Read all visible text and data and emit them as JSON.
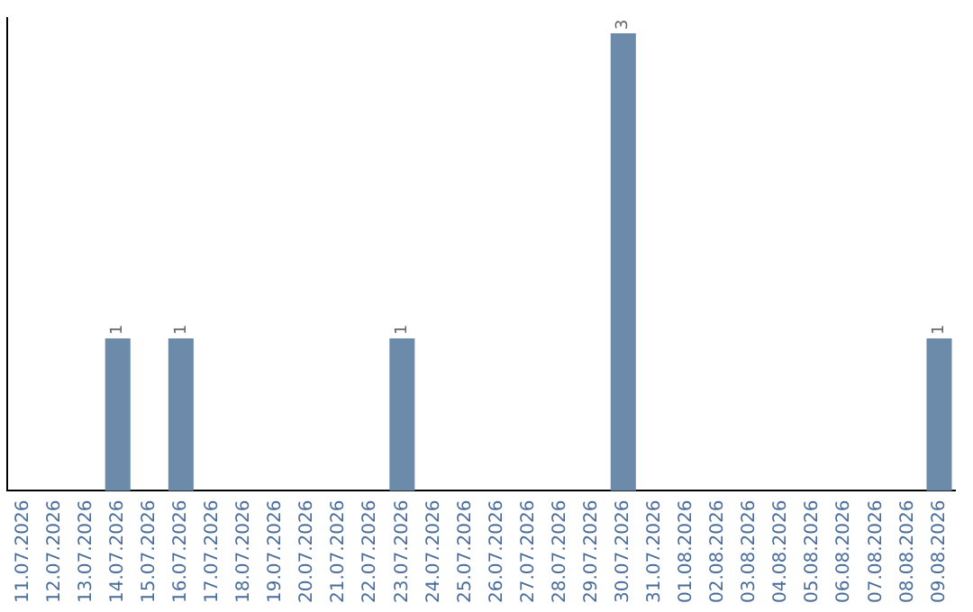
{
  "chart_data": {
    "type": "bar",
    "categories": [
      "11.07.2026",
      "12.07.2026",
      "13.07.2026",
      "14.07.2026",
      "15.07.2026",
      "16.07.2026",
      "17.07.2026",
      "18.07.2026",
      "19.07.2026",
      "20.07.2026",
      "21.07.2026",
      "22.07.2026",
      "23.07.2026",
      "24.07.2026",
      "25.07.2026",
      "26.07.2026",
      "27.07.2026",
      "28.07.2026",
      "29.07.2026",
      "30.07.2026",
      "31.07.2026",
      "01.08.2026",
      "02.08.2026",
      "03.08.2026",
      "04.08.2026",
      "05.08.2026",
      "06.08.2026",
      "07.08.2026",
      "08.08.2026",
      "09.08.2026"
    ],
    "values": [
      0,
      0,
      0,
      1,
      0,
      1,
      0,
      0,
      0,
      0,
      0,
      0,
      1,
      0,
      0,
      0,
      0,
      0,
      0,
      3,
      0,
      0,
      0,
      0,
      0,
      0,
      0,
      0,
      0,
      1
    ],
    "value_labels": [
      null,
      null,
      null,
      "1",
      null,
      "1",
      null,
      null,
      null,
      null,
      null,
      null,
      "1",
      null,
      null,
      null,
      null,
      null,
      null,
      "3",
      null,
      null,
      null,
      null,
      null,
      null,
      null,
      null,
      null,
      "1"
    ],
    "color": "#6c8bab",
    "ylim": [
      0,
      3.1
    ],
    "tick_labels": "x",
    "grid": false,
    "legend": false
  }
}
